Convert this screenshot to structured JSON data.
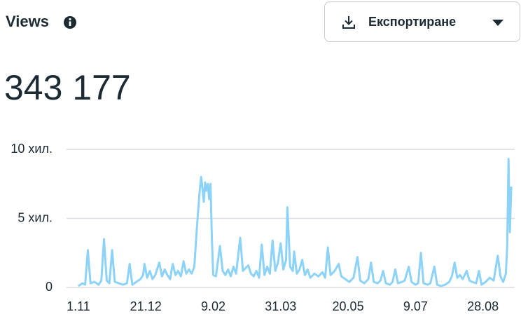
{
  "header": {
    "title": "Views"
  },
  "export_button": {
    "label": "Експортиране"
  },
  "total": "343 177",
  "chart_data": {
    "type": "line",
    "x": [
      0,
      3,
      5,
      7,
      9,
      12,
      15,
      17,
      19,
      21,
      23,
      25,
      27,
      30,
      33,
      36,
      38,
      40,
      43,
      46,
      48,
      49,
      51,
      53,
      55,
      57,
      60,
      62,
      64,
      66,
      68,
      70,
      72,
      74,
      76,
      78,
      80,
      82,
      84,
      86,
      88,
      90,
      91,
      92,
      93,
      94,
      95,
      96,
      97,
      98,
      99,
      100,
      102,
      105,
      107,
      109,
      111,
      113,
      115,
      117,
      120,
      122,
      124,
      126,
      128,
      130,
      132,
      134,
      136,
      138,
      140,
      142,
      144,
      146,
      148,
      150,
      152,
      154,
      155,
      157,
      159,
      160,
      162,
      164,
      166,
      168,
      170,
      172,
      175,
      178,
      181,
      183,
      185,
      187,
      190,
      193,
      195,
      198,
      201,
      204,
      207,
      209,
      212,
      215,
      217,
      219,
      222,
      224,
      226,
      228,
      231,
      233,
      235,
      237,
      240,
      242,
      245,
      247,
      250,
      252,
      254,
      256,
      259,
      261,
      264,
      266,
      269,
      272,
      275,
      277,
      279,
      281,
      283,
      285,
      288,
      290,
      292,
      295,
      297,
      299,
      302,
      305,
      308,
      311,
      313,
      315,
      317,
      318,
      319,
      320,
      321
    ],
    "values": [
      100,
      300,
      200,
      2700,
      300,
      400,
      200,
      500,
      3500,
      500,
      300,
      2700,
      400,
      300,
      200,
      300,
      1700,
      200,
      400,
      600,
      900,
      1700,
      700,
      1200,
      600,
      900,
      1800,
      800,
      1300,
      900,
      600,
      1700,
      900,
      1200,
      800,
      1900,
      1000,
      1300,
      1000,
      1500,
      4500,
      7000,
      8000,
      7200,
      6200,
      7600,
      7000,
      7500,
      6400,
      7500,
      3500,
      900,
      800,
      3000,
      1200,
      900,
      1300,
      800,
      1500,
      1000,
      3600,
      1200,
      1400,
      1600,
      1000,
      800,
      1200,
      700,
      3100,
      900,
      1500,
      1000,
      3400,
      1200,
      1800,
      3200,
      1300,
      2000,
      5800,
      1500,
      1200,
      2600,
      1000,
      1300,
      2000,
      900,
      1300,
      700,
      1000,
      800,
      1100,
      700,
      2900,
      900,
      1200,
      1700,
      800,
      600,
      400,
      700,
      2200,
      500,
      300,
      600,
      1800,
      400,
      300,
      500,
      1200,
      300,
      200,
      400,
      1300,
      300,
      400,
      500,
      1500,
      400,
      200,
      300,
      2500,
      300,
      200,
      300,
      1500,
      200,
      100,
      200,
      400,
      800,
      1800,
      700,
      900,
      600,
      1200,
      500,
      400,
      300,
      1200,
      200,
      400,
      700,
      500,
      2300,
      800,
      400,
      1000,
      3000,
      9300,
      4000,
      7300
    ],
    "color": "#8dd3f7",
    "xlim": [
      -1,
      322
    ],
    "xticks": [
      {
        "value": 0,
        "label": "1.11"
      },
      {
        "value": 50,
        "label": "21.12"
      },
      {
        "value": 100,
        "label": "9.02"
      },
      {
        "value": 150,
        "label": "31.03"
      },
      {
        "value": 200,
        "label": "20.05"
      },
      {
        "value": 250,
        "label": "9.07"
      },
      {
        "value": 300,
        "label": "28.08"
      }
    ],
    "ylim": [
      0,
      10000
    ],
    "yticks": [
      0,
      {
        "value": 5000,
        "label": "5 хил."
      },
      {
        "value": 10000,
        "label": "10 хил."
      }
    ],
    "grid": true
  }
}
